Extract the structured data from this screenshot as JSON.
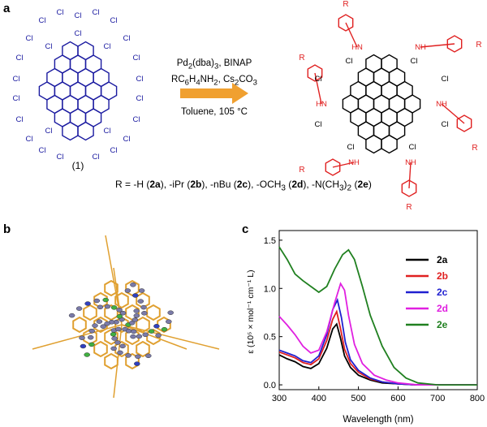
{
  "panels": {
    "a": "a",
    "b": "b",
    "c": "c"
  },
  "scheme": {
    "reactant_label": "(1)",
    "reagent_line1": "Pd",
    "reagent_line1_sub": "2",
    "reagent_line1_rest": "(dba)",
    "reagent_line1_sub2": "3",
    "reagent_line1_end": ", BINAP",
    "reagent_line2": "RC",
    "reagent_line2_sub1": "6",
    "reagent_line2_mid": "H",
    "reagent_line2_sub2": "4",
    "reagent_line2_mid2": "NH",
    "reagent_line2_sub3": "2",
    "reagent_line2_end": ", Cs",
    "reagent_line2_sub4": "2",
    "reagent_line2_end2": "CO",
    "reagent_line2_sub5": "3",
    "conditions": "Toluene, 105 °C",
    "cl": "Cl",
    "nh": "NH",
    "hn": "HN",
    "r": "R",
    "arrow_color": "#f0a030",
    "reactant_color": "#1a1aa0",
    "product_red": "#e02020",
    "r_groups": {
      "prefix": "R = -H (",
      "c1": "2a",
      "s1": "), -iPr (",
      "c2": "2b",
      "s2": "), -nBu (",
      "c3": "2c",
      "s3": "), -OCH",
      "sub3": "3",
      "s3b": " (",
      "c4": "2d",
      "s4": "), -N(CH",
      "sub4": "3",
      "s4b": ")",
      "sub4b": "2",
      "s4c": " (",
      "c5": "2e",
      "s5": ")"
    }
  },
  "chart_data": {
    "type": "line",
    "xlabel": "Wavelength (nm)",
    "ylabel": "ε (10⁵ × mol⁻¹ cm⁻¹ L)",
    "xlim": [
      300,
      800
    ],
    "ylim": [
      -0.05,
      1.6
    ],
    "xticks": [
      "300",
      "400",
      "500",
      "600",
      "700",
      "800"
    ],
    "yticks": [
      "0.0",
      "0.5",
      "1.0",
      "1.5"
    ],
    "grid": false,
    "legend_position": "top-right",
    "series": [
      {
        "name": "2a",
        "color": "#000000",
        "x": [
          300,
          320,
          340,
          360,
          380,
          400,
          420,
          435,
          445,
          455,
          465,
          480,
          500,
          530,
          560,
          600,
          650,
          700,
          800
        ],
        "y": [
          0.31,
          0.27,
          0.24,
          0.19,
          0.17,
          0.22,
          0.38,
          0.58,
          0.63,
          0.48,
          0.3,
          0.18,
          0.1,
          0.05,
          0.02,
          0.01,
          0.0,
          0.0,
          0.0
        ]
      },
      {
        "name": "2b",
        "color": "#e02020",
        "x": [
          300,
          320,
          340,
          360,
          380,
          400,
          420,
          435,
          445,
          455,
          465,
          480,
          500,
          530,
          560,
          600,
          650,
          700,
          800
        ],
        "y": [
          0.34,
          0.31,
          0.28,
          0.23,
          0.21,
          0.27,
          0.46,
          0.68,
          0.76,
          0.58,
          0.37,
          0.22,
          0.13,
          0.06,
          0.03,
          0.01,
          0.0,
          0.0,
          0.0
        ]
      },
      {
        "name": "2c",
        "color": "#2020d0",
        "x": [
          300,
          320,
          340,
          360,
          380,
          400,
          420,
          435,
          447,
          457,
          467,
          480,
          500,
          530,
          560,
          600,
          650,
          700,
          800
        ],
        "y": [
          0.36,
          0.33,
          0.3,
          0.25,
          0.23,
          0.3,
          0.52,
          0.78,
          0.88,
          0.7,
          0.44,
          0.26,
          0.15,
          0.07,
          0.03,
          0.01,
          0.0,
          0.0,
          0.0
        ]
      },
      {
        "name": "2d",
        "color": "#e020e0",
        "x": [
          300,
          320,
          340,
          360,
          380,
          400,
          420,
          440,
          455,
          465,
          475,
          490,
          510,
          540,
          570,
          600,
          650,
          700,
          800
        ],
        "y": [
          0.71,
          0.62,
          0.52,
          0.4,
          0.33,
          0.36,
          0.55,
          0.85,
          1.05,
          0.98,
          0.72,
          0.42,
          0.22,
          0.1,
          0.05,
          0.02,
          0.0,
          0.0,
          0.0
        ]
      },
      {
        "name": "2e",
        "color": "#208020",
        "x": [
          300,
          320,
          340,
          360,
          380,
          400,
          420,
          440,
          460,
          475,
          490,
          510,
          530,
          560,
          590,
          620,
          650,
          700,
          800
        ],
        "y": [
          1.43,
          1.3,
          1.15,
          1.08,
          1.02,
          0.96,
          1.02,
          1.2,
          1.35,
          1.4,
          1.3,
          1.02,
          0.72,
          0.4,
          0.18,
          0.07,
          0.02,
          0.0,
          0.0
        ]
      }
    ]
  }
}
